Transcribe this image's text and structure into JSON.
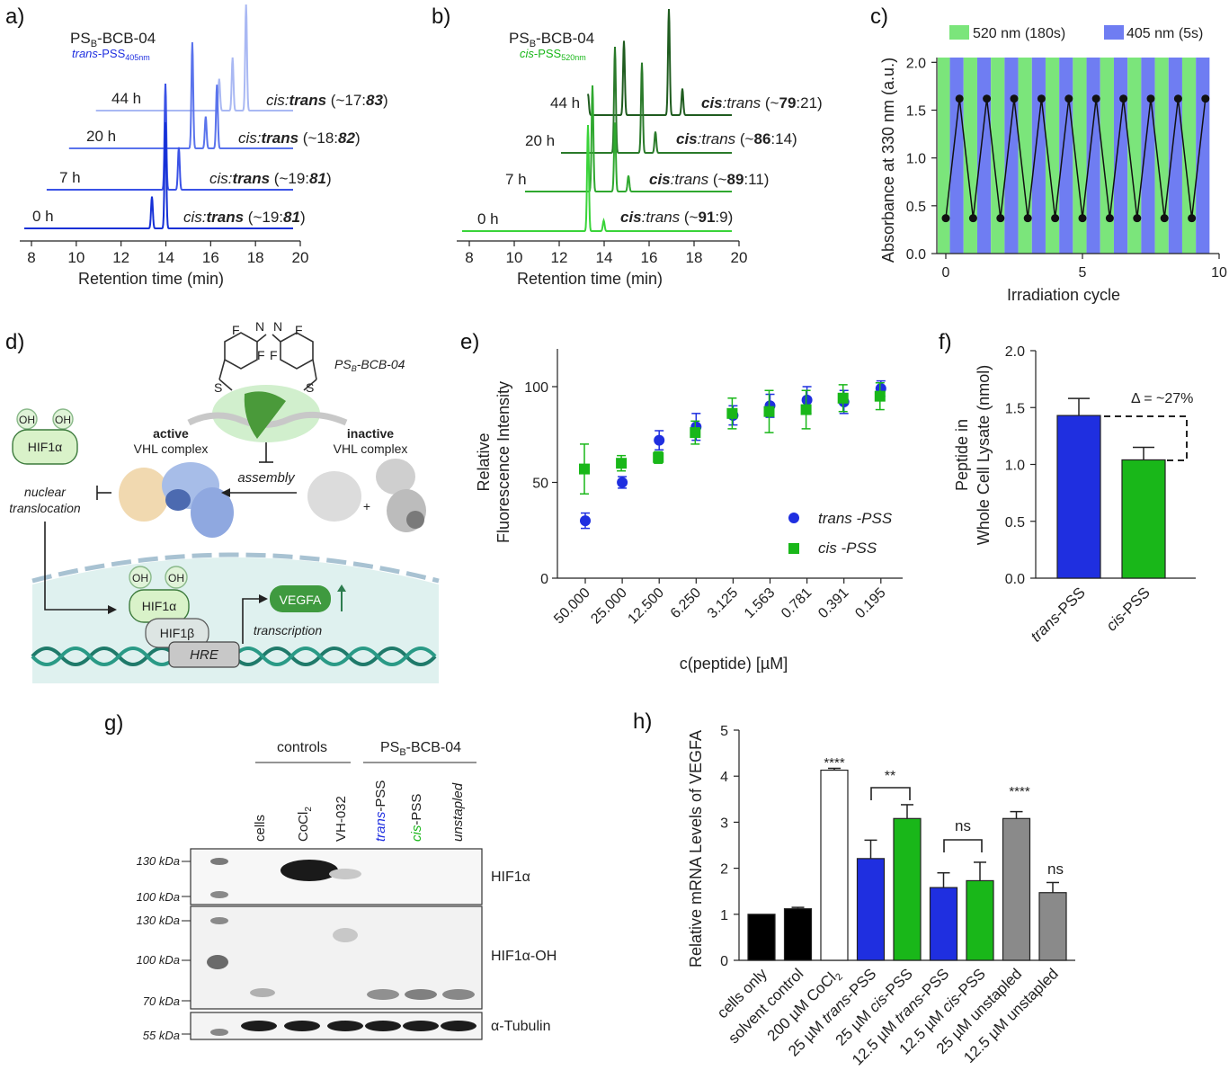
{
  "panels": {
    "a": {
      "label": "a)"
    },
    "b": {
      "label": "b)"
    },
    "c": {
      "label": "c)"
    },
    "d": {
      "label": "d)"
    },
    "e": {
      "label": "e)"
    },
    "f": {
      "label": "f)"
    },
    "g": {
      "label": "g)"
    },
    "h": {
      "label": "h)"
    }
  },
  "colors": {
    "trans": "#1f2fe0",
    "cis": "#19b719",
    "green_band": "#7be57b",
    "blue_band": "#6f7df2",
    "grey_bar": "#8a8a8a"
  },
  "panel_a": {
    "title_main": "PS",
    "title_sub": "B",
    "title_rest": "-BCB-04",
    "state_italic": "trans",
    "state_rest": "-PSS",
    "state_sub": "405nm",
    "traces": [
      {
        "time": "44 h",
        "ratio_pre": "cis:",
        "ratio_bold": "trans",
        "ratio_mid": " (~17:",
        "ratio_val": "83",
        "ratio_end": ")",
        "color": "#a9b8f3"
      },
      {
        "time": "20 h",
        "ratio_pre": "cis:",
        "ratio_bold": "trans",
        "ratio_mid": " (~18:",
        "ratio_val": "82",
        "ratio_end": ")",
        "color": "#5a73ec"
      },
      {
        "time": "7 h",
        "ratio_pre": "cis:",
        "ratio_bold": "trans",
        "ratio_mid": " (~19:",
        "ratio_val": "81",
        "ratio_end": ")",
        "color": "#3a52e6"
      },
      {
        "time": "0 h",
        "ratio_pre": "cis:",
        "ratio_bold": "trans",
        "ratio_mid": " (~19:",
        "ratio_val": "81",
        "ratio_end": ")",
        "color": "#1530d6"
      }
    ],
    "xlabel": "Retention time (min)",
    "xticks": [
      "8",
      "10",
      "12",
      "14",
      "16",
      "18",
      "20"
    ]
  },
  "panel_b": {
    "title_main": "PS",
    "title_sub": "B",
    "title_rest": "-BCB-04",
    "state_italic": "cis",
    "state_rest": "-PSS",
    "state_sub": "520nm",
    "traces": [
      {
        "time": "44 h",
        "ratio_pre": "cis",
        "ratio_mid": ":trans (~",
        "ratio_val": "79",
        "ratio_end": ":21)",
        "color": "#1f5c1f"
      },
      {
        "time": "20 h",
        "ratio_pre": "cis",
        "ratio_mid": ":trans (~",
        "ratio_val": "86",
        "ratio_end": ":14)",
        "color": "#2a7a2a"
      },
      {
        "time": "7 h",
        "ratio_pre": "cis",
        "ratio_mid": ":trans (~",
        "ratio_val": "89",
        "ratio_end": ":11)",
        "color": "#2fa82f"
      },
      {
        "time": "0 h",
        "ratio_pre": "cis",
        "ratio_mid": ":trans (~",
        "ratio_val": "91",
        "ratio_end": ":9)",
        "color": "#3ad43a"
      }
    ],
    "xlabel": "Retention time (min)",
    "xticks": [
      "8",
      "10",
      "12",
      "14",
      "16",
      "18",
      "20"
    ]
  },
  "panel_c": {
    "legend_green": "520 nm (180s)",
    "legend_blue": "405 nm (5s)",
    "ylabel": "Absorbance at 330 nm (a.u.)",
    "xlabel": "Irradiation cycle",
    "yticks": [
      "0.0",
      "0.5",
      "1.0",
      "1.5",
      "2.0"
    ],
    "xticks": [
      "0",
      "5",
      "10"
    ]
  },
  "panel_d": {
    "molecule_label_main": "PS",
    "molecule_label_sub": "B",
    "molecule_label_rest": "-BCB-04",
    "f1": "F",
    "f2": "F",
    "f3": "F",
    "f4": "F",
    "n1": "N",
    "n2": "N",
    "s1": "S",
    "s2": "S",
    "oh": "OH",
    "hif1a": "HIF1α",
    "hif1b": "HIF1β",
    "hre": "HRE",
    "vegfa": "VEGFA",
    "transcription": "transcription",
    "active_bold": "active",
    "active_rest": "VHL complex",
    "inactive_bold": "inactive",
    "inactive_rest": "VHL complex",
    "assembly": "assembly",
    "nuclear1": "nuclear",
    "nuclear2": "translocation",
    "plus": "+"
  },
  "panel_h": {
    "ylabel": "Relative mRNA Levels of VEGFA",
    "yticks": [
      "0",
      "1",
      "2",
      "3",
      "4",
      "5"
    ],
    "sig_coCl2": "****",
    "sig_trans_cis25": "**",
    "sig_trans_cis12": "ns",
    "sig_unstapled25": "****",
    "sig_unstapled12": "ns",
    "categories": [
      "cells only",
      "solvent control",
      "200 µM CoCl",
      "25 µM trans-PSS",
      "25 µM cis-PSS",
      "12.5 µM trans-PSS",
      "12.5 µM cis-PSS",
      "25 µM unstapled",
      "12.5 µM unstapled"
    ],
    "coCl2_sub": "2"
  },
  "panel_g": {
    "group_controls": "controls",
    "group_ps_main": "PS",
    "group_ps_sub": "B",
    "group_ps_rest": "-BCB-04",
    "lanes": [
      {
        "label": "cells",
        "style": "plain"
      },
      {
        "label": "CoCl",
        "sub": "2",
        "style": "plain"
      },
      {
        "label": "VH-032",
        "style": "plain"
      },
      {
        "label_colored": "trans",
        "label_rest": "-PSS",
        "style": "trans"
      },
      {
        "label_colored": "cis",
        "label_rest": "-PSS",
        "style": "cis"
      },
      {
        "label": "unstapled",
        "style": "italic"
      }
    ],
    "blots": [
      {
        "name": "HIF1α",
        "markers": [
          "130 kDa",
          "100 kDa"
        ]
      },
      {
        "name": "HIF1α-OH",
        "markers": [
          "130 kDa",
          "100 kDa",
          "70 kDa"
        ]
      },
      {
        "name": "α-Tubulin",
        "markers": [
          "55 kDa"
        ]
      }
    ]
  },
  "chart_data": [
    {
      "id": "e",
      "type": "scatter",
      "categories": [
        "50.000",
        "25.000",
        "12.500",
        "6.250",
        "3.125",
        "1.563",
        "0.781",
        "0.391",
        "0.195"
      ],
      "series": [
        {
          "name": "trans -PSS",
          "marker": "circle",
          "color": "#1f2fe0",
          "values": [
            30,
            50,
            72,
            79,
            85,
            90,
            93,
            92,
            99
          ],
          "errors": [
            4,
            3,
            5,
            7,
            5,
            6,
            7,
            6,
            4
          ]
        },
        {
          "name": "cis -PSS",
          "marker": "square",
          "color": "#19b719",
          "values": [
            57,
            60,
            63,
            76,
            86,
            87,
            88,
            94,
            95
          ],
          "errors": [
            13,
            4,
            3,
            6,
            8,
            11,
            10,
            7,
            7
          ]
        }
      ],
      "xlabel": "c(peptide) [µM]",
      "ylabel_line1": "Relative",
      "ylabel_line2": "Fluorescence Intensity",
      "ylim": [
        0,
        120
      ],
      "yticks": [
        "0",
        "50",
        "100"
      ]
    },
    {
      "id": "f",
      "type": "bar",
      "categories": [
        "trans-PSS",
        "cis-PSS"
      ],
      "values": [
        1.43,
        1.04
      ],
      "errors": [
        0.15,
        0.11
      ],
      "colors": [
        "#1f2fe0",
        "#19b719"
      ],
      "ylabel_line1": "Peptide in",
      "ylabel_line2": "Whole Cell Lysate (nmol)",
      "ylim": [
        0,
        2.0
      ],
      "yticks": [
        "0.0",
        "0.5",
        "1.0",
        "1.5",
        "2.0"
      ],
      "annotation": "Δ  = ~27%"
    },
    {
      "id": "h",
      "type": "bar",
      "categories": [
        "cells only",
        "solvent control",
        "200 µM CoCl2",
        "25 µM trans-PSS",
        "25 µM cis-PSS",
        "12.5 µM trans-PSS",
        "12.5 µM cis-PSS",
        "25 µM unstapled",
        "12.5 µM unstapled"
      ],
      "values": [
        1.0,
        1.12,
        4.13,
        2.21,
        3.08,
        1.58,
        1.73,
        3.08,
        1.47
      ],
      "errors": [
        0.0,
        0.03,
        0.04,
        0.4,
        0.3,
        0.32,
        0.4,
        0.15,
        0.22
      ],
      "ylim": [
        0,
        5
      ]
    },
    {
      "id": "c",
      "type": "line",
      "x": [
        0,
        0.5,
        1,
        1.5,
        2,
        2.5,
        3,
        3.5,
        4,
        4.5,
        5,
        5.5,
        6,
        6.5,
        7,
        7.5,
        8,
        8.5,
        9,
        9.5
      ],
      "values": [
        0.37,
        1.62,
        0.37,
        1.62,
        0.37,
        1.62,
        0.37,
        1.62,
        0.37,
        1.62,
        0.37,
        1.62,
        0.37,
        1.62,
        0.37,
        1.62,
        0.37,
        1.62,
        0.37,
        1.62
      ],
      "ylim": [
        0,
        2.05
      ],
      "xlim": [
        -0.25,
        10
      ]
    },
    {
      "id": "a",
      "type": "line",
      "x_range": [
        8,
        20
      ],
      "series": [
        {
          "name": "44 h",
          "peaks": [
            [
              16.7,
              30
            ],
            [
              17.3,
              50
            ],
            [
              17.9,
              100
            ]
          ]
        },
        {
          "name": "20 h",
          "peaks": [
            [
              15.5,
              100
            ],
            [
              16.1,
              30
            ],
            [
              16.6,
              60
            ]
          ]
        },
        {
          "name": "7 h",
          "peaks": [
            [
              14.3,
              100
            ],
            [
              14.9,
              40
            ]
          ]
        },
        {
          "name": "0 h",
          "peaks": [
            [
              13.7,
              30
            ],
            [
              14.3,
              100
            ]
          ]
        }
      ]
    },
    {
      "id": "b",
      "type": "line",
      "x_range": [
        8,
        20
      ],
      "series": [
        {
          "name": "44 h",
          "peaks": [
            [
              13.6,
              20
            ],
            [
              15.2,
              70
            ],
            [
              17.2,
              100
            ],
            [
              17.8,
              25
            ]
          ]
        },
        {
          "name": "20 h",
          "peaks": [
            [
              14.8,
              100
            ],
            [
              16.0,
              85
            ],
            [
              16.6,
              20
            ]
          ]
        },
        {
          "name": "7 h",
          "peaks": [
            [
              13.8,
              100
            ],
            [
              14.8,
              65
            ],
            [
              15.4,
              15
            ]
          ]
        },
        {
          "name": "0 h",
          "peaks": [
            [
              13.6,
              100
            ],
            [
              14.3,
              10
            ]
          ]
        }
      ]
    }
  ]
}
